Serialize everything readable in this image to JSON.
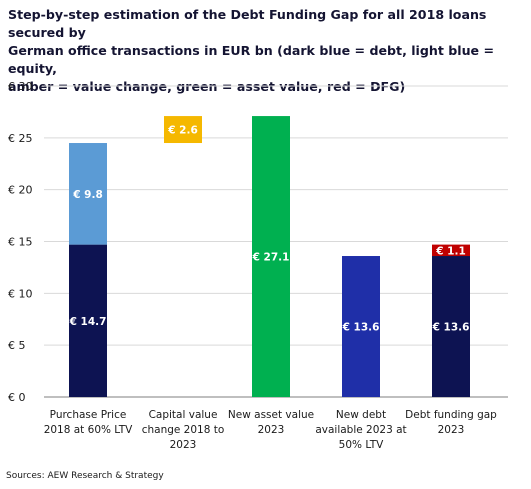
{
  "title_lines": [
    "Step-by-step estimation of the Debt Funding Gap for all 2018 loans secured by",
    "German office transactions in EUR bn (dark blue = debt, light blue = equity,",
    "amber = value change, green = asset value, red = DFG)"
  ],
  "source": "Sources: AEW Research & Strategy",
  "chart_data": {
    "type": "bar",
    "subtype": "waterfall-stacked",
    "ylim": [
      0,
      30
    ],
    "y_ticks": [
      0,
      5,
      10,
      15,
      20,
      25,
      30
    ],
    "y_tick_labels": [
      "€ 0",
      "€ 5",
      "€ 10",
      "€ 15",
      "€ 20",
      "€ 25",
      "€ 30"
    ],
    "grid": true,
    "categories": [
      [
        "Purchase Price",
        "2018 at 60% LTV"
      ],
      [
        "Capital value",
        "change 2018 to",
        "2023"
      ],
      [
        "New asset value",
        "2023"
      ],
      [
        "New debt",
        "available 2023 at",
        "50% LTV"
      ],
      [
        "Debt funding gap",
        "2023"
      ]
    ],
    "segments": [
      {
        "category": 0,
        "base": 0,
        "value": 14.7,
        "label": "€ 14.7",
        "color": "#0d1352"
      },
      {
        "category": 0,
        "base": 14.7,
        "value": 9.8,
        "label": "€ 9.8",
        "color": "#5b9bd5"
      },
      {
        "category": 1,
        "base": 24.5,
        "value": 2.6,
        "label": "€ 2.6",
        "color": "#f5b800"
      },
      {
        "category": 2,
        "base": 0,
        "value": 27.1,
        "label": "€ 27.1",
        "color": "#00b050"
      },
      {
        "category": 3,
        "base": 0,
        "value": 13.6,
        "label": "€ 13.6",
        "color": "#1f2fa8"
      },
      {
        "category": 4,
        "base": 0,
        "value": 13.6,
        "label": "€ 13.6",
        "color": "#0d1352"
      },
      {
        "category": 4,
        "base": 13.6,
        "value": 1.1,
        "label": "€ 1.1",
        "color": "#c00000"
      }
    ]
  }
}
